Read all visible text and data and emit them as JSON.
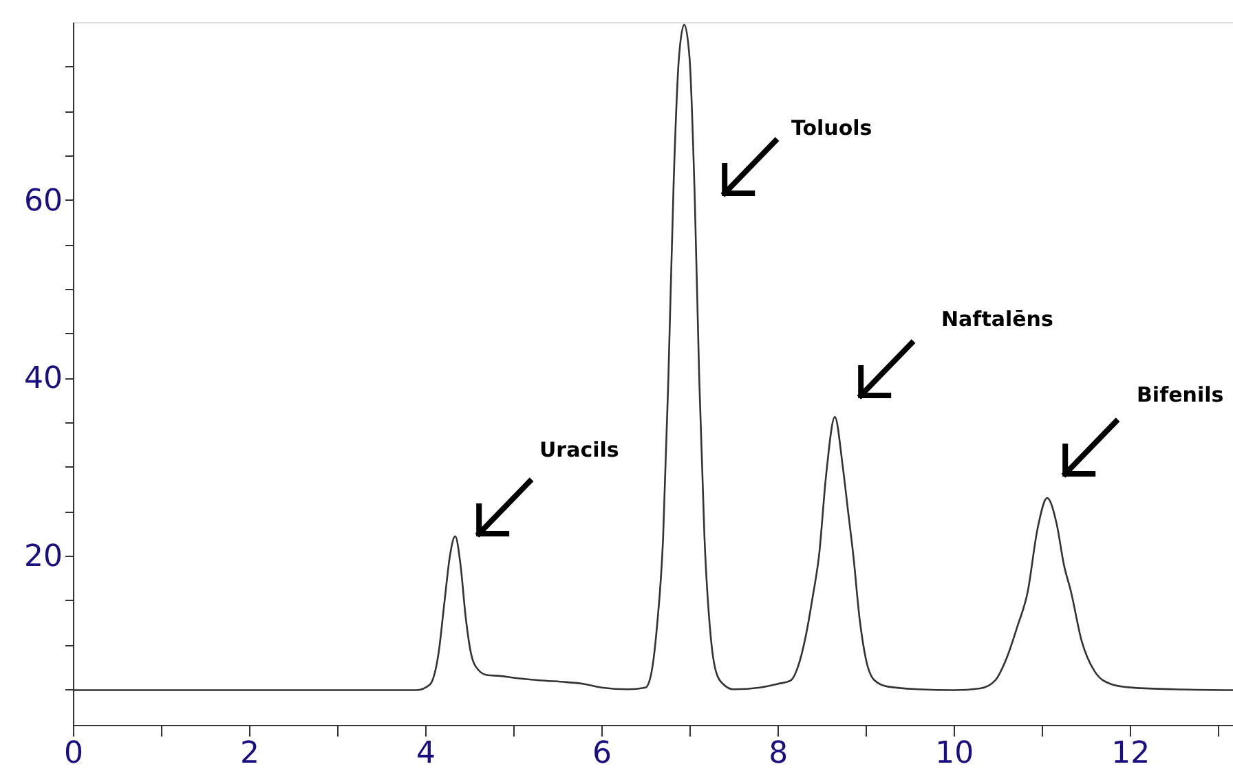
{
  "chart_data": {
    "type": "line",
    "x": [
      0,
      0.5,
      1,
      2,
      3,
      3.9,
      4.05,
      4.15,
      4.22,
      4.28,
      4.34,
      4.4,
      4.46,
      4.52,
      4.6,
      4.7,
      4.85,
      5.0,
      5.3,
      5.6,
      5.8,
      6.0,
      6.3,
      6.5,
      6.57,
      6.63,
      6.7,
      6.76,
      6.82,
      6.88,
      6.94,
      7.0,
      7.06,
      7.11,
      7.17,
      7.24,
      7.3,
      7.38,
      7.5,
      7.8,
      8.0,
      8.15,
      8.23,
      8.32,
      8.4,
      8.47,
      8.55,
      8.65,
      8.74,
      8.8,
      8.86,
      8.93,
      9.0,
      9.1,
      9.25,
      9.6,
      10.0,
      10.3,
      10.47,
      10.6,
      10.72,
      10.84,
      10.95,
      11.06,
      11.17,
      11.25,
      11.33,
      11.45,
      11.6,
      11.78,
      12.0,
      12.5,
      13.17
    ],
    "series": [
      {
        "color": "#333333",
        "values": [
          4.9,
          4.9,
          4.9,
          4.9,
          4.9,
          4.9,
          5.5,
          9,
          15,
          20,
          22.2,
          19,
          13,
          9,
          7.2,
          6.6,
          6.5,
          6.3,
          6.0,
          5.8,
          5.6,
          5.2,
          5.0,
          5.2,
          7,
          12,
          22,
          40,
          62,
          76,
          79.7,
          76,
          60,
          40,
          22,
          11,
          7,
          5.6,
          5.0,
          5.2,
          5.6,
          6,
          7.5,
          11,
          15.5,
          20,
          29,
          35.6,
          30,
          25,
          20,
          13,
          8.5,
          6,
          5.3,
          5.0,
          4.9,
          5.1,
          6,
          8.5,
          12,
          16,
          23,
          26.5,
          23.5,
          19,
          16,
          10.5,
          7,
          5.6,
          5.2,
          5.0,
          4.9
        ]
      }
    ],
    "xlim": [
      0,
      13.17
    ],
    "xticks": [
      0,
      {
        "value": 1,
        "label": null
      },
      2,
      {
        "value": 3,
        "label": null
      },
      4,
      {
        "value": 5,
        "label": null
      },
      6,
      {
        "value": 7,
        "label": null
      },
      8,
      {
        "value": 9,
        "label": null
      },
      10,
      {
        "value": 11,
        "label": null
      },
      12,
      {
        "value": 13,
        "label": null
      }
    ],
    "ylim": [
      1,
      80
    ],
    "yticks": [
      {
        "value": 5,
        "label": null
      },
      {
        "value": 10,
        "label": null
      },
      {
        "value": 15,
        "label": null
      },
      20,
      {
        "value": 25,
        "label": null
      },
      {
        "value": 30,
        "label": null
      },
      {
        "value": 35,
        "label": null
      },
      40,
      {
        "value": 45,
        "label": null
      },
      {
        "value": 50,
        "label": null
      },
      {
        "value": 55,
        "label": null
      },
      60,
      {
        "value": 65,
        "label": null
      },
      {
        "value": 70,
        "label": null
      },
      {
        "value": 75,
        "label": null
      }
    ],
    "grid": false,
    "marker": "none",
    "line_style": "solid",
    "annotations": [
      "Uracils",
      "Toluols",
      "Naftalēns",
      "Bifenils"
    ]
  }
}
